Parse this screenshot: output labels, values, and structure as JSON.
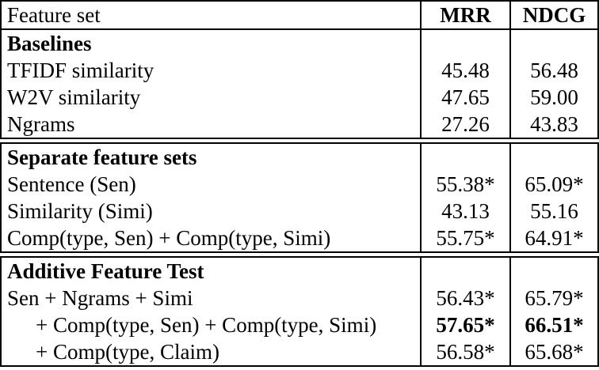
{
  "colors": {
    "text": "#000000",
    "border": "#000000",
    "background": "#ffffff"
  },
  "table": {
    "columns": [
      "Feature set",
      "MRR",
      "NDCG"
    ],
    "sections": [
      {
        "header": "Baselines",
        "rows": [
          {
            "label": "TFIDF similarity",
            "mrr": "45.48",
            "ndcg": "56.48",
            "indent": false,
            "bold_values": false
          },
          {
            "label": "W2V similarity",
            "mrr": "47.65",
            "ndcg": "59.00",
            "indent": false,
            "bold_values": false
          },
          {
            "label": "Ngrams",
            "mrr": "27.26",
            "ndcg": "43.83",
            "indent": false,
            "bold_values": false
          }
        ]
      },
      {
        "header": "Separate feature sets",
        "rows": [
          {
            "label": "Sentence (Sen)",
            "mrr": "55.38*",
            "ndcg": "65.09*",
            "indent": false,
            "bold_values": false
          },
          {
            "label": "Similarity (Simi)",
            "mrr": "43.13",
            "ndcg": "55.16",
            "indent": false,
            "bold_values": false
          },
          {
            "label": "Comp(type, Sen) + Comp(type, Simi)",
            "mrr": "55.75*",
            "ndcg": "64.91*",
            "indent": false,
            "bold_values": false
          }
        ]
      },
      {
        "header": "Additive Feature Test",
        "rows": [
          {
            "label": "Sen + Ngrams + Simi",
            "mrr": "56.43*",
            "ndcg": "65.79*",
            "indent": false,
            "bold_values": false
          },
          {
            "label": "+ Comp(type, Sen) + Comp(type, Simi)",
            "mrr": "57.65*",
            "ndcg": "66.51*",
            "indent": true,
            "bold_values": true
          },
          {
            "label": "+ Comp(type, Claim)",
            "mrr": "56.58*",
            "ndcg": "65.68*",
            "indent": true,
            "bold_values": false
          }
        ]
      }
    ]
  }
}
